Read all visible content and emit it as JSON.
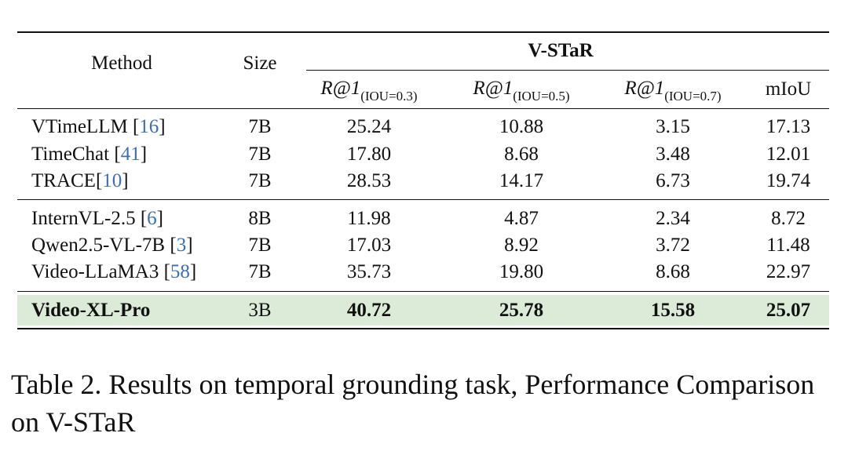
{
  "table": {
    "headers": {
      "method": "Method",
      "size": "Size",
      "group": "V-STaR",
      "metric_prefix": "R@1",
      "sub_03": "(IOU=0.3)",
      "sub_05": "(IOU=0.5)",
      "sub_07": "(IOU=0.7)",
      "miou": "mIoU"
    },
    "rows": [
      {
        "name": "VTimeLLM ",
        "open": "[",
        "cite": "16",
        "close": "]",
        "size": "7B",
        "r03": "25.24",
        "r05": "10.88",
        "r07": "3.15",
        "miou": "17.13"
      },
      {
        "name": "TimeChat ",
        "open": "[",
        "cite": "41",
        "close": "]",
        "size": "7B",
        "r03": "17.80",
        "r05": "8.68",
        "r07": "3.48",
        "miou": "12.01"
      },
      {
        "name": "TRACE",
        "open": "[",
        "cite": "10",
        "close": "]",
        "size": "7B",
        "r03": "28.53",
        "r05": "14.17",
        "r07": "6.73",
        "miou": "19.74"
      },
      {
        "name": "InternVL-2.5 ",
        "open": "[",
        "cite": "6",
        "close": "]",
        "size": "8B",
        "r03": "11.98",
        "r05": "4.87",
        "r07": "2.34",
        "miou": "8.72"
      },
      {
        "name": "Qwen2.5-VL-7B ",
        "open": "[",
        "cite": "3",
        "close": "]",
        "size": "7B",
        "r03": "17.03",
        "r05": "8.92",
        "r07": "3.72",
        "miou": "11.48"
      },
      {
        "name": "Video-LLaMA3 ",
        "open": "[",
        "cite": "58",
        "close": "]",
        "size": "7B",
        "r03": "35.73",
        "r05": "19.80",
        "r07": "8.68",
        "miou": "22.97"
      },
      {
        "name": "Video-XL-Pro",
        "size": "3B",
        "r03": "40.72",
        "r05": "25.78",
        "r07": "15.58",
        "miou": "25.07"
      }
    ],
    "highlight_color": "#dcebd8",
    "cite_color": "#3a6fb5"
  },
  "caption": "Table 2. Results on temporal grounding task, Performance Comparison on V-STaR"
}
